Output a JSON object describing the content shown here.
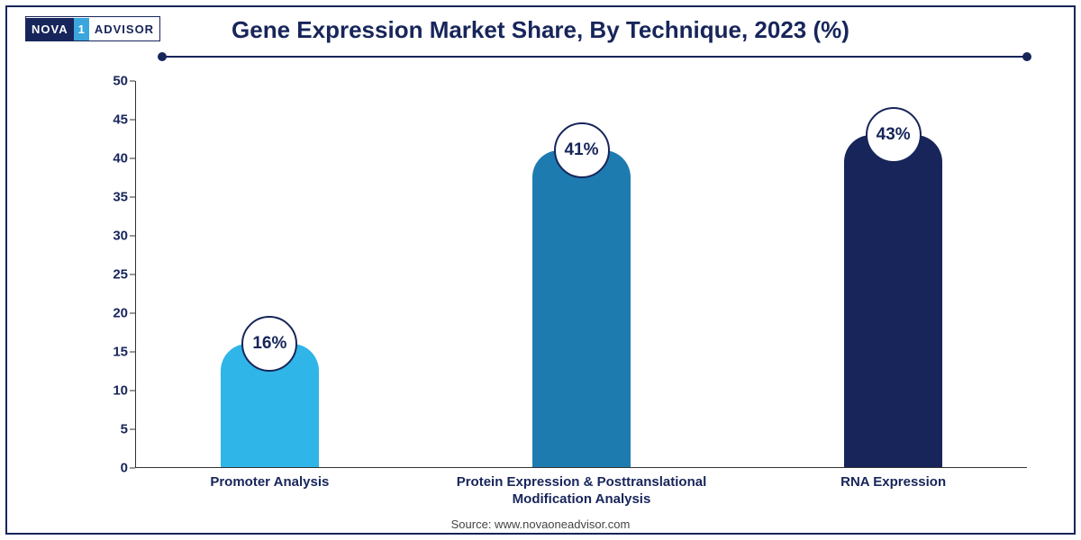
{
  "logo": {
    "part1": "NOVA",
    "part2": "1",
    "part3": "ADVISOR"
  },
  "title": "Gene Expression Market Share, By Technique, 2023 (%)",
  "source": "Source: www.novaoneadvisor.com",
  "chart": {
    "type": "bar",
    "ylim": [
      0,
      50
    ],
    "ytick_step": 5,
    "yticks": [
      0,
      5,
      10,
      15,
      20,
      25,
      30,
      35,
      40,
      45,
      50
    ],
    "title_color": "#17255a",
    "axis_color": "#333333",
    "label_color": "#17255a",
    "background_color": "#ffffff",
    "border_color": "#17255a",
    "divider_color": "#17255a",
    "bar_border_radius_top": 30,
    "bars": [
      {
        "category": "Promoter Analysis",
        "value": 16,
        "label": "16%",
        "color": "#2fb5e8",
        "center_pct": 15,
        "width_pct": 11
      },
      {
        "category": "Protein Expression & Posttranslational Modification Analysis",
        "value": 41,
        "label": "41%",
        "color": "#1e7bb0",
        "center_pct": 50,
        "width_pct": 11
      },
      {
        "category": "RNA Expression",
        "value": 43,
        "label": "43%",
        "color": "#17255a",
        "center_pct": 85,
        "width_pct": 11
      }
    ],
    "title_fontsize": 26,
    "ytick_fontsize": 15,
    "xlabel_fontsize": 15,
    "value_label_fontsize": 19
  }
}
